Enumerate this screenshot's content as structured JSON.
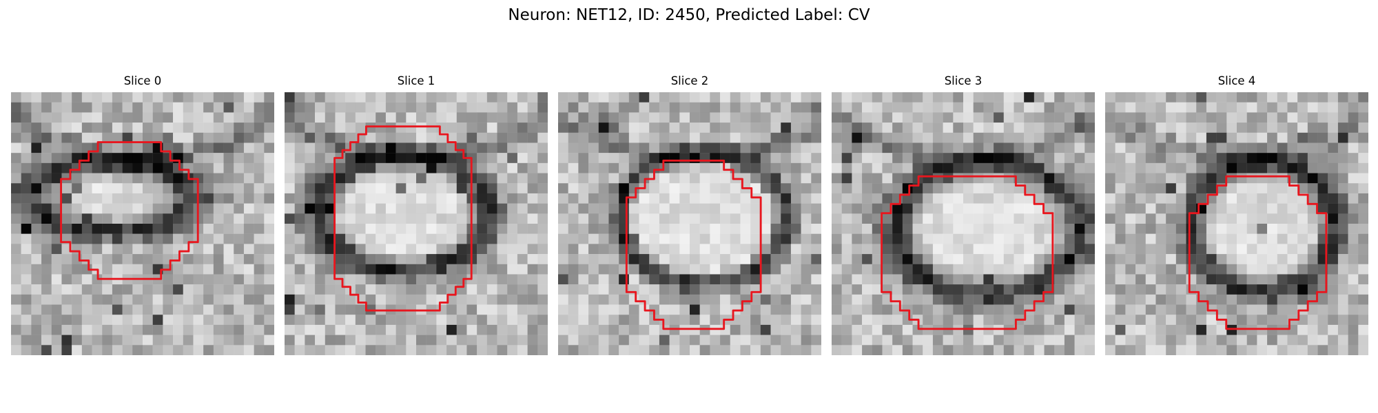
{
  "figure": {
    "suptitle": "Neuron: NET12, ID: 2450, Predicted Label: CV"
  },
  "panels": [
    {
      "title": "Slice 0",
      "overlay_color": "#e8161e"
    },
    {
      "title": "Slice 1",
      "overlay_color": "#e8161e"
    },
    {
      "title": "Slice 2",
      "overlay_color": "#e8161e"
    },
    {
      "title": "Slice 3",
      "overlay_color": "#e8161e"
    },
    {
      "title": "Slice 4",
      "overlay_color": "#e8161e"
    }
  ]
}
